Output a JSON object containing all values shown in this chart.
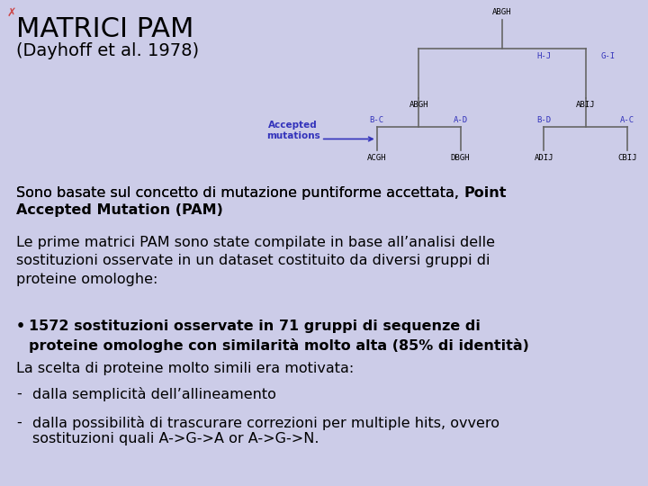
{
  "title": "MATRICI PAM",
  "subtitle": "(Dayhoff et al. 1978)",
  "bg_color": "#cccce8",
  "title_color": "#000000",
  "title_fontsize": 22,
  "subtitle_fontsize": 14,
  "body_fontsize": 11.5,
  "text_color": "#000000",
  "blue_color": "#3333bb",
  "tree_color": "#666666",
  "p1_normal": "Sono basate sul concetto di mutazione puntiforme accettata, ",
  "p1_bold_end": "Point",
  "p1_bold2": "Accepted Mutation (PAM)",
  "p2": "Le prime matrici PAM sono state compilate in base all’analisi delle\nsostituzioni osservate in un dataset costituito da diversi gruppi di\nproteine omologhe:",
  "bullet": "1572 sostituzioni osservate in 71 gruppi di sequenze di\nproteine omologhe con similarità molto alta (85% di identità)",
  "p3": "La scelta di proteine molto simili era motivata:",
  "dash1": "dalla semplicità dell’allineamento",
  "dash2_line1": "dalla possibilità di trascurare correzioni per multiple hits, ovvero",
  "dash2_line2": "sostituzioni quali A->G->A or A->G->N.",
  "tree_root_label": "ABGH",
  "tree_left_label": "ABGH",
  "tree_right_label": "ABIJ",
  "hj_label": "H-J",
  "gi_label": "G-I",
  "bc_label": "B-C",
  "ad_label": "A-D",
  "bd_label": "B-D",
  "ac_label": "A-C",
  "acgh_label": "ACGH",
  "dbgh_label": "DBGH",
  "adij_label": "ADIJ",
  "cbij_label": "CBIJ",
  "acc_mut_label": "Accepted\nmutations"
}
